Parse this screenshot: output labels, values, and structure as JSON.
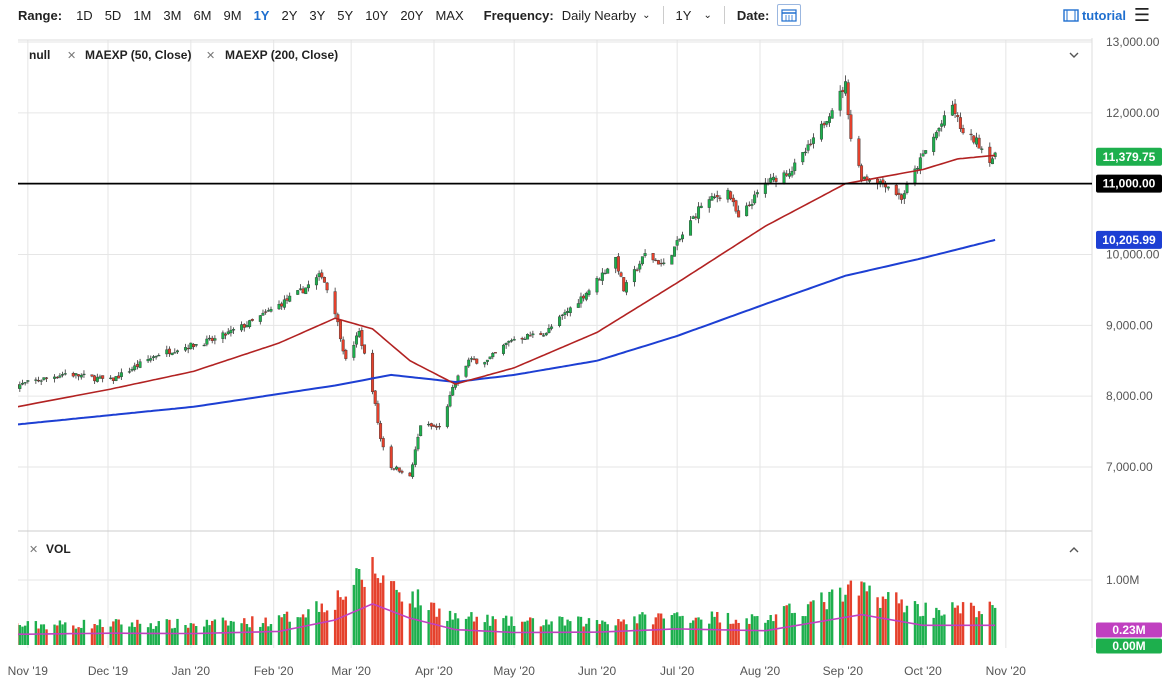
{
  "toolbar": {
    "range_label": "Range:",
    "ranges": [
      "1D",
      "5D",
      "1M",
      "3M",
      "6M",
      "9M",
      "1Y",
      "2Y",
      "3Y",
      "5Y",
      "10Y",
      "20Y",
      "MAX"
    ],
    "active_range": "1Y",
    "frequency_label": "Frequency:",
    "frequency_value": "Daily Nearby",
    "period_value": "1Y",
    "date_label": "Date:",
    "tutorial_label": "tutorial"
  },
  "legend": {
    "main": "null",
    "study1": "MAEXP (50, Close)",
    "study2": "MAEXP (200, Close)",
    "volume": "VOL"
  },
  "colors": {
    "up": "#1daf4d",
    "down": "#e5412c",
    "ma50": "#b22222",
    "ma200": "#1d3fd3",
    "vol_avg": "#c040c0",
    "level_line": "#000000"
  },
  "chart_data": [
    {
      "type": "candlestick",
      "x_tick_labels": [
        "Nov '19",
        "Dec '19",
        "Jan '20",
        "Feb '20",
        "Mar '20",
        "Apr '20",
        "May '20",
        "Jun '20",
        "Jul '20",
        "Aug '20",
        "Sep '20",
        "Oct '20",
        "Nov '20"
      ],
      "y_tick_labels": [
        "13,000.00",
        "12,000.00",
        "11,000.00",
        "10,000.00",
        "9,000.00",
        "8,000.00",
        "7,000.00"
      ],
      "y_ticks": [
        13000,
        12000,
        11000,
        10000,
        9000,
        8000,
        7000
      ],
      "ylim": [
        6150,
        13000
      ],
      "close_anchors": [
        {
          "date": "2019-10-28",
          "value": 8150
        },
        {
          "date": "2019-11-15",
          "value": 8320
        },
        {
          "date": "2019-12-02",
          "value": 8220
        },
        {
          "date": "2019-12-20",
          "value": 8600
        },
        {
          "date": "2020-01-10",
          "value": 8800
        },
        {
          "date": "2020-01-24",
          "value": 9050
        },
        {
          "date": "2020-02-12",
          "value": 9500
        },
        {
          "date": "2020-02-19",
          "value": 9720
        },
        {
          "date": "2020-02-24",
          "value": 9200
        },
        {
          "date": "2020-02-28",
          "value": 8500
        },
        {
          "date": "2020-03-04",
          "value": 8900
        },
        {
          "date": "2020-03-09",
          "value": 8100
        },
        {
          "date": "2020-03-12",
          "value": 7400
        },
        {
          "date": "2020-03-16",
          "value": 7000
        },
        {
          "date": "2020-03-20",
          "value": 6950
        },
        {
          "date": "2020-03-23",
          "value": 6850
        },
        {
          "date": "2020-03-27",
          "value": 7600
        },
        {
          "date": "2020-04-03",
          "value": 7550
        },
        {
          "date": "2020-04-09",
          "value": 8200
        },
        {
          "date": "2020-04-14",
          "value": 8500
        },
        {
          "date": "2020-04-21",
          "value": 8500
        },
        {
          "date": "2020-04-30",
          "value": 8800
        },
        {
          "date": "2020-05-13",
          "value": 8900
        },
        {
          "date": "2020-05-29",
          "value": 9500
        },
        {
          "date": "2020-06-08",
          "value": 9950
        },
        {
          "date": "2020-06-11",
          "value": 9500
        },
        {
          "date": "2020-06-19",
          "value": 10000
        },
        {
          "date": "2020-06-26",
          "value": 9850
        },
        {
          "date": "2020-07-10",
          "value": 10700
        },
        {
          "date": "2020-07-20",
          "value": 10900
        },
        {
          "date": "2020-07-24",
          "value": 10500
        },
        {
          "date": "2020-08-03",
          "value": 11000
        },
        {
          "date": "2020-08-13",
          "value": 11200
        },
        {
          "date": "2020-08-21",
          "value": 11600
        },
        {
          "date": "2020-09-02",
          "value": 12400
        },
        {
          "date": "2020-09-04",
          "value": 11650
        },
        {
          "date": "2020-09-08",
          "value": 11100
        },
        {
          "date": "2020-09-17",
          "value": 11000
        },
        {
          "date": "2020-09-23",
          "value": 10800
        },
        {
          "date": "2020-10-01",
          "value": 11400
        },
        {
          "date": "2020-10-12",
          "value": 12100
        },
        {
          "date": "2020-10-16",
          "value": 11700
        },
        {
          "date": "2020-10-21",
          "value": 11600
        },
        {
          "date": "2020-10-26",
          "value": 11350
        },
        {
          "date": "2020-10-28",
          "value": 11379.75
        }
      ],
      "ma50_anchors": [
        {
          "date": "2019-10-28",
          "value": 7850
        },
        {
          "date": "2019-12-02",
          "value": 8100
        },
        {
          "date": "2020-01-02",
          "value": 8350
        },
        {
          "date": "2020-02-03",
          "value": 8750
        },
        {
          "date": "2020-02-24",
          "value": 9100
        },
        {
          "date": "2020-03-09",
          "value": 8950
        },
        {
          "date": "2020-03-23",
          "value": 8500
        },
        {
          "date": "2020-04-09",
          "value": 8170
        },
        {
          "date": "2020-05-01",
          "value": 8400
        },
        {
          "date": "2020-06-01",
          "value": 8900
        },
        {
          "date": "2020-07-01",
          "value": 9600
        },
        {
          "date": "2020-08-03",
          "value": 10400
        },
        {
          "date": "2020-09-02",
          "value": 11000
        },
        {
          "date": "2020-10-01",
          "value": 11200
        },
        {
          "date": "2020-10-14",
          "value": 11350
        },
        {
          "date": "2020-10-28",
          "value": 11400
        }
      ],
      "ma200_anchors": [
        {
          "date": "2019-10-28",
          "value": 7600
        },
        {
          "date": "2020-01-02",
          "value": 7850
        },
        {
          "date": "2020-02-24",
          "value": 8150
        },
        {
          "date": "2020-03-16",
          "value": 8300
        },
        {
          "date": "2020-04-09",
          "value": 8200
        },
        {
          "date": "2020-05-01",
          "value": 8300
        },
        {
          "date": "2020-06-01",
          "value": 8500
        },
        {
          "date": "2020-07-01",
          "value": 8850
        },
        {
          "date": "2020-08-03",
          "value": 9300
        },
        {
          "date": "2020-09-02",
          "value": 9700
        },
        {
          "date": "2020-10-01",
          "value": 9950
        },
        {
          "date": "2020-10-28",
          "value": 10205.99
        }
      ],
      "level_line": 11000,
      "tags": [
        {
          "label": "11,379.75",
          "value": 11379.75,
          "color": "#1daf4d"
        },
        {
          "label": "11,000.00",
          "value": 11000,
          "color": "#000000"
        },
        {
          "label": "10,205.99",
          "value": 10205.99,
          "color": "#1d3fd3"
        }
      ]
    },
    {
      "type": "bar",
      "name": "VOL",
      "y_tick_labels": [
        "1.00M"
      ],
      "y_ticks": [
        1000000
      ],
      "ylim": [
        0,
        1250000
      ],
      "volume_anchors": [
        {
          "date": "2019-10-28",
          "value": 300000
        },
        {
          "date": "2019-12-02",
          "value": 330000
        },
        {
          "date": "2020-01-02",
          "value": 320000
        },
        {
          "date": "2020-02-03",
          "value": 380000
        },
        {
          "date": "2020-02-24",
          "value": 700000
        },
        {
          "date": "2020-03-09",
          "value": 1150000
        },
        {
          "date": "2020-03-23",
          "value": 750000
        },
        {
          "date": "2020-04-09",
          "value": 430000
        },
        {
          "date": "2020-05-01",
          "value": 350000
        },
        {
          "date": "2020-06-01",
          "value": 360000
        },
        {
          "date": "2020-07-01",
          "value": 450000
        },
        {
          "date": "2020-08-03",
          "value": 400000
        },
        {
          "date": "2020-09-08",
          "value": 850000
        },
        {
          "date": "2020-10-01",
          "value": 550000
        },
        {
          "date": "2020-10-28",
          "value": 550000
        }
      ],
      "tags": [
        {
          "label": "0.23M",
          "value": 230000,
          "color": "#c040c0"
        },
        {
          "label": "0.00M",
          "value": 0,
          "color": "#1daf4d"
        }
      ]
    }
  ]
}
